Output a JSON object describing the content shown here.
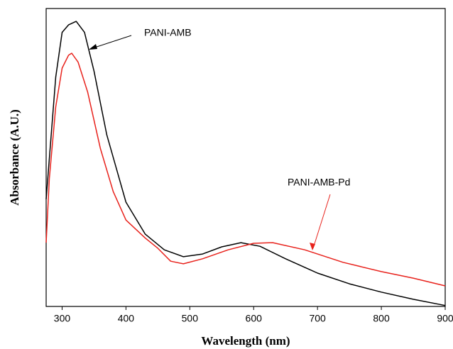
{
  "chart_data": {
    "type": "line",
    "x_label": "Wavelength (nm)",
    "y_label": "Absorbance (A.U.)",
    "xlim": [
      275,
      900
    ],
    "xticks": [
      300,
      400,
      500,
      600,
      700,
      800,
      900
    ],
    "ylim": [
      0,
      1
    ],
    "series": [
      {
        "name": "PANI-AMB",
        "color": "#000000",
        "x": [
          275,
          290,
          300,
          310,
          322,
          335,
          350,
          370,
          400,
          430,
          460,
          490,
          520,
          550,
          580,
          610,
          650,
          700,
          750,
          800,
          850,
          900
        ],
        "values": [
          0.36,
          0.77,
          0.92,
          0.945,
          0.957,
          0.92,
          0.79,
          0.576,
          0.35,
          0.243,
          0.19,
          0.167,
          0.176,
          0.2,
          0.214,
          0.202,
          0.16,
          0.112,
          0.076,
          0.048,
          0.024,
          0.003
        ]
      },
      {
        "name": "PANI-AMB-Pd",
        "color": "#e8221c",
        "x": [
          275,
          280,
          290,
          300,
          310,
          315,
          325,
          340,
          360,
          380,
          400,
          430,
          450,
          470,
          490,
          520,
          560,
          600,
          630,
          680,
          740,
          800,
          850,
          900
        ],
        "values": [
          0.214,
          0.43,
          0.67,
          0.8,
          0.843,
          0.85,
          0.82,
          0.72,
          0.53,
          0.386,
          0.29,
          0.23,
          0.195,
          0.152,
          0.143,
          0.16,
          0.19,
          0.212,
          0.214,
          0.19,
          0.148,
          0.117,
          0.095,
          0.069
        ]
      }
    ]
  }
}
